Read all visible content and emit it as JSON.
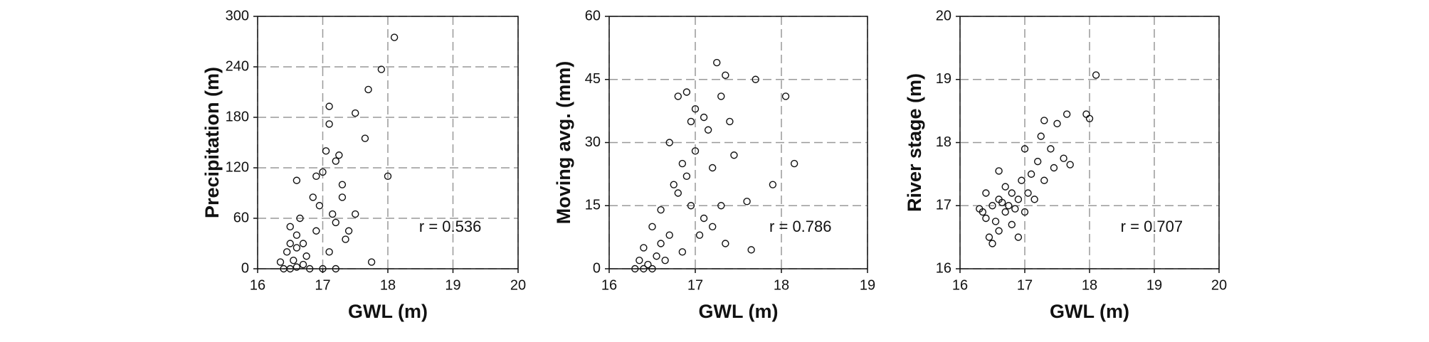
{
  "chart_data": [
    {
      "type": "scatter",
      "x_label": "GWL (m)",
      "y_label": "Precipitation (m)",
      "annotation": "r = 0.536",
      "color": "#111111",
      "grid": true,
      "xlim": [
        16,
        20
      ],
      "xticks": [
        16,
        17,
        18,
        19,
        20
      ],
      "ylim": [
        0,
        300
      ],
      "yticks": [
        0,
        60,
        120,
        180,
        240,
        300
      ],
      "x": [
        18.1,
        17.9,
        17.7,
        17.65,
        18.0,
        17.5,
        17.1,
        17.1,
        17.05,
        17.2,
        17.25,
        16.6,
        16.9,
        17.3,
        17.5,
        17.3,
        17.35,
        17.75,
        17.0,
        16.85,
        17.2,
        16.5,
        16.6,
        16.45,
        16.55,
        16.7,
        16.4,
        16.5,
        16.6,
        16.8,
        17.0,
        17.2,
        16.35,
        16.7,
        16.9,
        17.1,
        16.65,
        16.5,
        16.75,
        16.6,
        17.4,
        17.15,
        16.95
      ],
      "values": [
        275,
        237,
        213,
        155,
        110,
        185,
        193,
        172,
        140,
        128,
        135,
        105,
        110,
        100,
        65,
        85,
        35,
        8,
        115,
        85,
        55,
        50,
        40,
        20,
        10,
        5,
        0,
        0,
        2,
        0,
        0,
        0,
        8,
        30,
        45,
        20,
        60,
        30,
        15,
        25,
        45,
        65,
        75
      ]
    },
    {
      "type": "scatter",
      "x_label": "GWL (m)",
      "y_label": "Moving avg. (mm)",
      "annotation": "r = 0.786",
      "color": "#111111",
      "grid": true,
      "xlim": [
        16,
        19
      ],
      "xticks": [
        16,
        17,
        18,
        19
      ],
      "ylim": [
        0,
        60
      ],
      "yticks": [
        0,
        15,
        30,
        45,
        60
      ],
      "x": [
        17.25,
        17.35,
        17.7,
        18.05,
        18.15,
        17.9,
        17.6,
        17.65,
        17.35,
        16.8,
        16.9,
        17.0,
        17.1,
        17.3,
        16.7,
        16.85,
        17.0,
        17.2,
        17.45,
        16.8,
        16.95,
        17.1,
        17.2,
        16.6,
        16.5,
        16.4,
        16.3,
        16.35,
        16.45,
        16.55,
        16.6,
        16.7,
        16.75,
        16.9,
        17.05,
        16.5,
        16.4,
        17.4,
        17.3,
        16.65,
        16.85,
        17.15,
        16.95
      ],
      "values": [
        49,
        46,
        45,
        41,
        25,
        20,
        16,
        4.5,
        6,
        41,
        42,
        38,
        36,
        41,
        30,
        25,
        28,
        24,
        27,
        18,
        15,
        12,
        10,
        14,
        10,
        5,
        0,
        2,
        1,
        3,
        6,
        8,
        20,
        22,
        8,
        0,
        0,
        35,
        15,
        2,
        4,
        33,
        35
      ]
    },
    {
      "type": "scatter",
      "x_label": "GWL (m)",
      "y_label": "River stage (m)",
      "annotation": "r = 0.707",
      "color": "#111111",
      "grid": true,
      "xlim": [
        16,
        20
      ],
      "xticks": [
        16,
        17,
        18,
        19,
        20
      ],
      "ylim": [
        16,
        20
      ],
      "yticks": [
        16,
        17,
        18,
        19,
        20
      ],
      "x": [
        18.1,
        17.95,
        18.0,
        17.65,
        17.7,
        17.5,
        17.3,
        17.25,
        17.4,
        17.2,
        17.1,
        17.0,
        16.95,
        16.8,
        16.7,
        16.6,
        16.5,
        16.4,
        16.35,
        16.4,
        16.45,
        16.5,
        16.6,
        16.7,
        16.8,
        16.9,
        16.55,
        16.65,
        16.75,
        16.85,
        17.05,
        17.15,
        17.3,
        17.45,
        17.6,
        16.3,
        16.9,
        17.0,
        16.6
      ],
      "values": [
        19.07,
        18.45,
        18.38,
        18.45,
        17.65,
        18.3,
        18.35,
        18.1,
        17.9,
        17.7,
        17.5,
        17.9,
        17.4,
        17.2,
        17.3,
        17.1,
        17.0,
        16.8,
        16.9,
        17.2,
        16.5,
        16.4,
        16.6,
        16.9,
        16.7,
        16.5,
        16.75,
        17.05,
        17.0,
        16.95,
        17.2,
        17.1,
        17.4,
        17.6,
        17.75,
        16.95,
        17.1,
        16.9,
        17.55
      ]
    }
  ]
}
